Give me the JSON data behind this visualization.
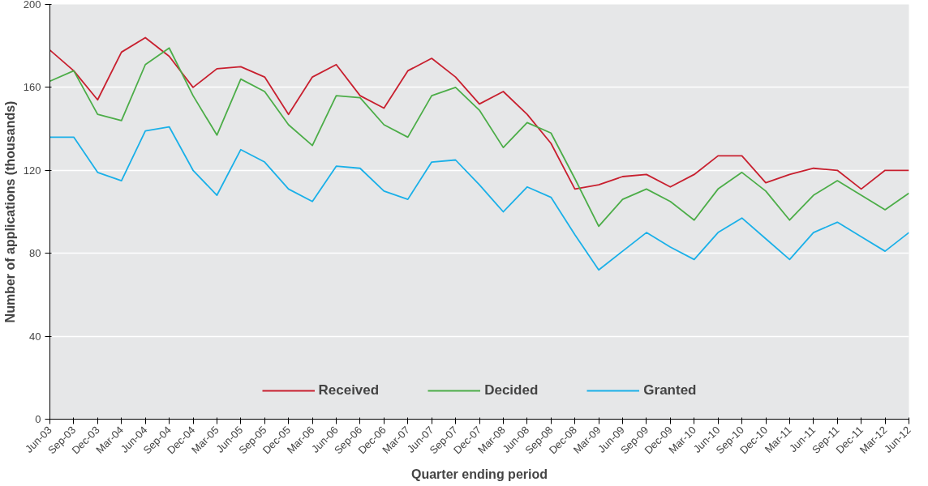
{
  "chart_data": {
    "type": "line",
    "xlabel": "Quarter ending period",
    "ylabel": "Number of applications (thousands)",
    "categories": [
      "Jun-03",
      "Sep-03",
      "Dec-03",
      "Mar-04",
      "Jun-04",
      "Sep-04",
      "Dec-04",
      "Mar-05",
      "Jun-05",
      "Sep-05",
      "Dec-05",
      "Mar-06",
      "Jun-06",
      "Sep-06",
      "Dec-06",
      "Mar-07",
      "Jun-07",
      "Sep-07",
      "Dec-07",
      "Mar-08",
      "Jun-08",
      "Sep-08",
      "Dec-08",
      "Mar-09",
      "Jun-09",
      "Sep-09",
      "Dec-09",
      "Mar-10",
      "Jun-10",
      "Sep-10",
      "Dec-10",
      "Mar-11",
      "Jun-11",
      "Sep-11",
      "Dec-11",
      "Mar-12",
      "Jun-12"
    ],
    "series": [
      {
        "name": "Received",
        "color": "#c8202f",
        "values": [
          178,
          168,
          154,
          177,
          184,
          175,
          160,
          169,
          170,
          165,
          147,
          165,
          171,
          156,
          150,
          168,
          174,
          165,
          152,
          158,
          147,
          133,
          111,
          113,
          117,
          118,
          112,
          118,
          127,
          127,
          114,
          118,
          121,
          120,
          111,
          120,
          120
        ]
      },
      {
        "name": "Decided",
        "color": "#4cad48",
        "values": [
          163,
          168,
          147,
          144,
          171,
          179,
          156,
          137,
          164,
          158,
          142,
          132,
          156,
          155,
          142,
          136,
          156,
          160,
          149,
          131,
          143,
          138,
          116,
          93,
          106,
          111,
          105,
          96,
          111,
          119,
          110,
          96,
          108,
          115,
          108,
          101,
          109
        ]
      },
      {
        "name": "Granted",
        "color": "#1ab0e8",
        "values": [
          136,
          136,
          119,
          115,
          139,
          141,
          120,
          108,
          130,
          124,
          111,
          105,
          122,
          121,
          110,
          106,
          124,
          125,
          113,
          100,
          112,
          107,
          89,
          72,
          81,
          90,
          83,
          77,
          90,
          97,
          87,
          77,
          90,
          95,
          88,
          81,
          90
        ]
      }
    ],
    "ylim": [
      0,
      200
    ],
    "yticks": [
      0,
      40,
      80,
      120,
      160,
      200
    ],
    "grid": "y",
    "legend": "bottom",
    "marker": "none",
    "line_style": "solid"
  }
}
